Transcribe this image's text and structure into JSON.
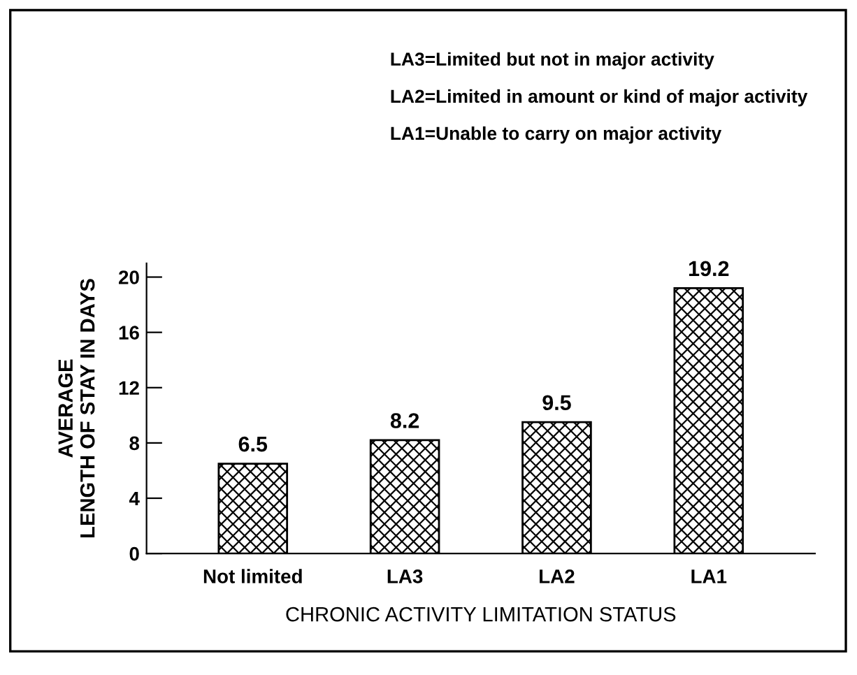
{
  "chart_data": {
    "type": "bar",
    "xlabel": "CHRONIC ACTIVITY LIMITATION STATUS",
    "ylabel": "AVERAGE\nLENGTH OF STAY IN DAYS",
    "annotations": [
      "LA3=Limited but not in major activity",
      "LA2=Limited in amount or kind of major activity",
      "LA1=Unable to carry on major activity"
    ],
    "categories": [
      "Not limited",
      "LA3",
      "LA2",
      "LA1"
    ],
    "values": [
      6.5,
      8.2,
      9.5,
      19.2
    ],
    "color": "#000000",
    "ylim": [
      0,
      21
    ],
    "yticks": [
      0,
      4,
      8,
      12,
      16,
      20
    ],
    "data_labels": true,
    "grid": false,
    "legend": false
  }
}
